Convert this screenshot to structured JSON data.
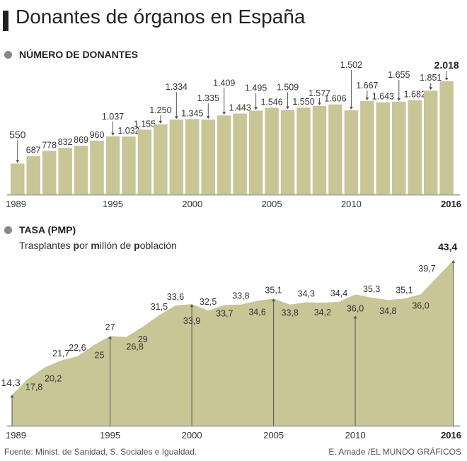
{
  "title": "Donantes de órganos en España",
  "footer": {
    "source": "Fuente: Minist. de Sanidad, S. Sociales e Igualdad.",
    "credit": "E. Amade /EL MUNDO GRÁFICOS"
  },
  "colors": {
    "fill": "#c8c597",
    "axis": "#aaaaaa",
    "dot": "#888888",
    "arrow": "#555555"
  },
  "chart_data": [
    {
      "type": "bar",
      "title": "NÚMERO DE DONANTES",
      "xlabel": "",
      "ylabel": "",
      "categories": [
        "1989",
        "1990",
        "1991",
        "1992",
        "1993",
        "1994",
        "1995",
        "1996",
        "1997",
        "1998",
        "1999",
        "2000",
        "2001",
        "2002",
        "2003",
        "2004",
        "2005",
        "2006",
        "2007",
        "2008",
        "2009",
        "2010",
        "2011",
        "2012",
        "2013",
        "2014",
        "2015",
        "2016"
      ],
      "values": [
        550,
        687,
        778,
        832,
        869,
        960,
        1037,
        1032,
        1155,
        1250,
        1334,
        1345,
        1335,
        1409,
        1443,
        1495,
        1546,
        1509,
        1550,
        1577,
        1606,
        1502,
        1667,
        1643,
        1655,
        1682,
        1851,
        2018
      ],
      "value_labels": [
        "550",
        "687",
        "778",
        "832",
        "869",
        "960",
        "1.037",
        "1.032",
        "1.155",
        "1.250",
        "1.334",
        "1.345",
        "1.335",
        "1.409",
        "1.443",
        "1.495",
        "1.546",
        "1.509",
        "1.550",
        "1.577",
        "1.606",
        "1.502",
        "1.667",
        "1.643",
        "1.655",
        "1.682",
        "1.851",
        "2.018"
      ],
      "tick_labels": [
        {
          "year": "1989",
          "label": "1989"
        },
        {
          "year": "1995",
          "label": "1995"
        },
        {
          "year": "2000",
          "label": "2000"
        },
        {
          "year": "2005",
          "label": "2005"
        },
        {
          "year": "2010",
          "label": "2010"
        },
        {
          "year": "2016",
          "label": "2016",
          "bold": true
        }
      ],
      "ylim": [
        0,
        2018
      ],
      "grid": false,
      "legend": "none"
    },
    {
      "type": "area",
      "title": "TASA (PMP)",
      "subtitle_parts": [
        {
          "text": "Trasplantes ",
          "bold": false
        },
        {
          "text": "p",
          "bold": true
        },
        {
          "text": "or ",
          "bold": false
        },
        {
          "text": "m",
          "bold": true
        },
        {
          "text": "illón de ",
          "bold": false
        },
        {
          "text": "p",
          "bold": true
        },
        {
          "text": "oblación",
          "bold": false
        }
      ],
      "xlabel": "",
      "ylabel": "",
      "categories": [
        "1989",
        "1990",
        "1991",
        "1992",
        "1993",
        "1994",
        "1995",
        "1996",
        "1997",
        "1998",
        "1999",
        "2000",
        "2001",
        "2002",
        "2003",
        "2004",
        "2005",
        "2006",
        "2007",
        "2008",
        "2009",
        "2010",
        "2011",
        "2012",
        "2013",
        "2014",
        "2015",
        "2016"
      ],
      "values": [
        14.3,
        17.8,
        20.2,
        21.7,
        22.6,
        25,
        27,
        26.8,
        29,
        31.5,
        33.6,
        33.9,
        32.5,
        33.7,
        33.8,
        34.6,
        35.1,
        33.8,
        34.3,
        34.2,
        34.4,
        36.0,
        35.3,
        34.8,
        35.1,
        36.0,
        39.7,
        43.4
      ],
      "value_labels": [
        "14,3",
        "17,8",
        "20,2",
        "21,7",
        "22,6",
        "25",
        "27",
        "26,8",
        "29",
        "31,5",
        "33,6",
        "33,9",
        "32,5",
        "33,7",
        "33,8",
        "34,6",
        "35,1",
        "33,8",
        "34,3",
        "34,2",
        "34,4",
        "36,0",
        "35,3",
        "34,8",
        "35,1",
        "36,0",
        "39,7",
        "43,4"
      ],
      "tick_labels": [
        {
          "year": "1989",
          "label": "1989"
        },
        {
          "year": "1995",
          "label": "1995"
        },
        {
          "year": "2000",
          "label": "2000"
        },
        {
          "year": "2005",
          "label": "2005"
        },
        {
          "year": "2010",
          "label": "2010"
        },
        {
          "year": "2016",
          "label": "2016",
          "bold": true
        }
      ],
      "ylim": [
        7.6,
        43.4
      ],
      "grid": false,
      "legend": "none"
    }
  ]
}
